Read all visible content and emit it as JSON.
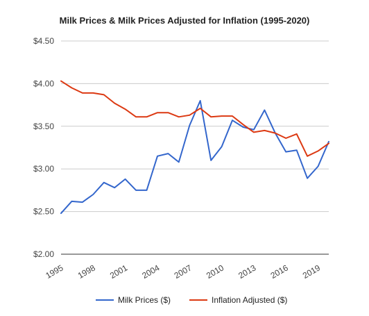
{
  "chart_data": {
    "type": "line",
    "title": "Milk Prices & Milk Prices Adjusted for Inflation (1995-2020)",
    "xlabel": "",
    "ylabel": "",
    "ylim": [
      2.0,
      4.5
    ],
    "yticks": [
      "$2.00",
      "$2.50",
      "$3.00",
      "$3.50",
      "$4.00",
      "$4.50"
    ],
    "ytick_values": [
      2.0,
      2.5,
      3.0,
      3.5,
      4.0,
      4.5
    ],
    "xticks": [
      "1995",
      "1998",
      "2001",
      "2004",
      "2007",
      "2010",
      "2013",
      "2016",
      "2019"
    ],
    "xtick_values": [
      1995,
      1998,
      2001,
      2004,
      2007,
      2010,
      2013,
      2016,
      2019
    ],
    "xlim": [
      1995,
      2020
    ],
    "grid": true,
    "legend_position": "bottom",
    "x": [
      1995,
      1996,
      1997,
      1998,
      1999,
      2000,
      2001,
      2002,
      2003,
      2004,
      2005,
      2006,
      2007,
      2008,
      2009,
      2010,
      2011,
      2012,
      2013,
      2014,
      2015,
      2016,
      2017,
      2018,
      2019,
      2020
    ],
    "series": [
      {
        "name": "Milk Prices ($)",
        "color": "#3366cc",
        "values": [
          2.48,
          2.62,
          2.61,
          2.7,
          2.84,
          2.78,
          2.88,
          2.75,
          2.75,
          3.15,
          3.18,
          3.08,
          3.51,
          3.8,
          3.1,
          3.26,
          3.57,
          3.49,
          3.46,
          3.69,
          3.42,
          3.2,
          3.22,
          2.89,
          3.03,
          3.32
        ]
      },
      {
        "name": "Inflation Adjusted ($)",
        "color": "#dc3912",
        "values": [
          4.03,
          3.95,
          3.89,
          3.89,
          3.87,
          3.77,
          3.7,
          3.61,
          3.61,
          3.66,
          3.66,
          3.61,
          3.63,
          3.71,
          3.61,
          3.62,
          3.62,
          3.52,
          3.43,
          3.45,
          3.42,
          3.36,
          3.41,
          3.15,
          3.21,
          3.3
        ]
      }
    ]
  }
}
